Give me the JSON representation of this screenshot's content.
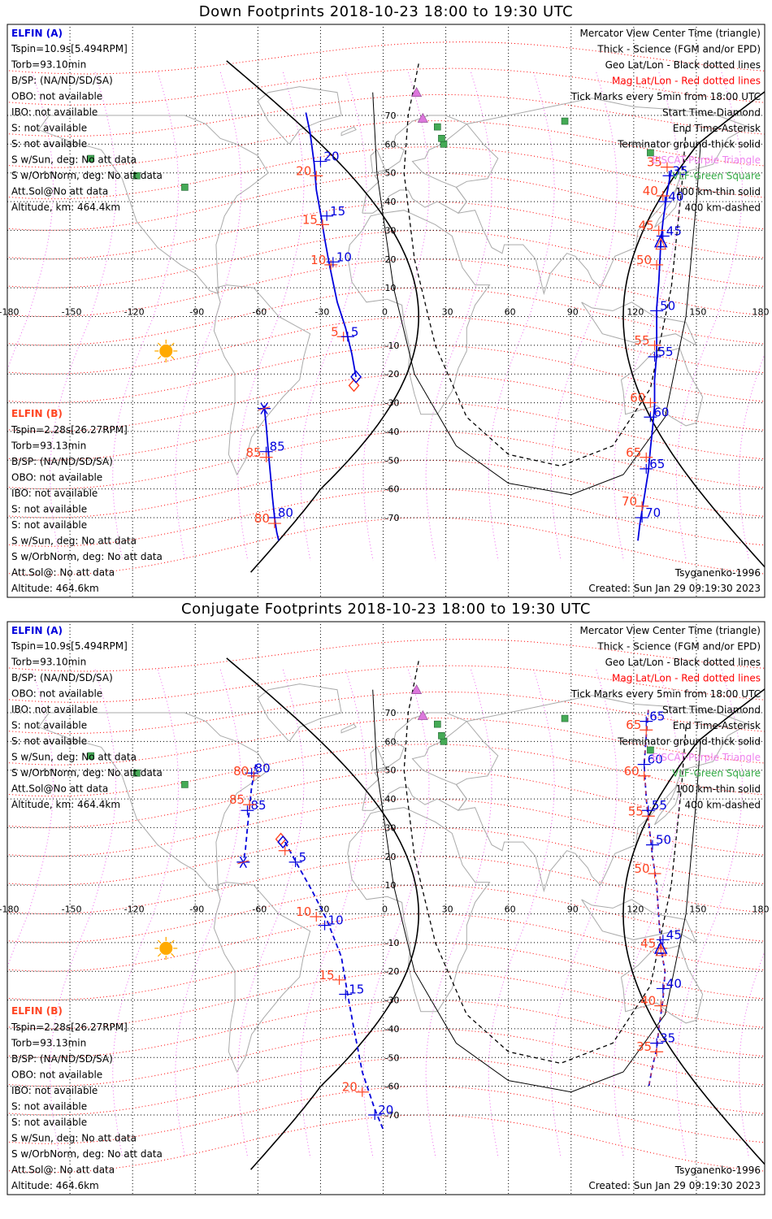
{
  "panels": [
    {
      "title": "Down Footprints 2018-10-23 18:00 to 19:30 UTC",
      "trackA": [
        [
          -37,
          71
        ],
        [
          -35,
          64
        ],
        [
          -33,
          53
        ],
        [
          -32,
          44
        ],
        [
          -30,
          36
        ],
        [
          -28,
          27
        ],
        [
          -26,
          19
        ],
        [
          -24,
          12
        ],
        [
          -22,
          5
        ],
        [
          -18,
          -4
        ],
        [
          -15,
          -13
        ],
        [
          -13,
          -21
        ]
      ],
      "tickA": [
        {
          "lon": -30,
          "lat": 54,
          "v": "20"
        },
        {
          "lon": -27,
          "lat": 35,
          "v": "15"
        },
        {
          "lon": -24,
          "lat": 19,
          "v": "10"
        },
        {
          "lon": -17,
          "lat": -7,
          "v": "5"
        }
      ],
      "tickAr": [
        {
          "lon": -32,
          "lat": 49,
          "v": "20"
        },
        {
          "lon": -29,
          "lat": 32,
          "v": "15"
        },
        {
          "lon": -25,
          "lat": 18,
          "v": "10"
        },
        {
          "lon": -19,
          "lat": -7,
          "v": "5"
        }
      ],
      "trackB": [
        [
          -57,
          -31
        ],
        [
          -56,
          -38
        ],
        [
          -55,
          -47
        ],
        [
          -54,
          -55
        ],
        [
          -53,
          -63
        ],
        [
          -52,
          -70
        ],
        [
          -51,
          -75
        ],
        [
          -50,
          -78
        ]
      ],
      "tickB": [
        {
          "lon": -56,
          "lat": -47,
          "v": "85"
        },
        {
          "lon": -52,
          "lat": -70,
          "v": "80"
        }
      ],
      "tickBr": [
        {
          "lon": -56,
          "lat": -49,
          "v": "85"
        },
        {
          "lon": -52,
          "lat": -72,
          "v": "80"
        }
      ],
      "trackA2": [
        [
          138,
          51
        ],
        [
          136,
          43
        ],
        [
          134,
          33
        ],
        [
          133,
          26
        ],
        [
          132,
          12
        ],
        [
          131,
          3
        ],
        [
          131,
          -5
        ],
        [
          131,
          -13
        ],
        [
          130,
          -22
        ],
        [
          130,
          -31
        ],
        [
          129,
          -39
        ],
        [
          128,
          -46
        ],
        [
          127,
          -54
        ],
        [
          125,
          -63
        ],
        [
          123,
          -72
        ],
        [
          122,
          -78
        ]
      ],
      "tickA2": [
        {
          "lon": 137,
          "lat": 49,
          "v": "35"
        },
        {
          "lon": 135,
          "lat": 40,
          "v": "40"
        },
        {
          "lon": 134,
          "lat": 28,
          "v": "45"
        },
        {
          "lon": 131,
          "lat": 2,
          "v": "50"
        },
        {
          "lon": 130,
          "lat": -14,
          "v": "55"
        },
        {
          "lon": 128,
          "lat": -35,
          "v": "60"
        },
        {
          "lon": 126,
          "lat": -53,
          "v": "65"
        },
        {
          "lon": 124,
          "lat": -70,
          "v": "70"
        }
      ],
      "tickA2r": [
        {
          "lon": 136,
          "lat": 52,
          "v": "35"
        },
        {
          "lon": 134,
          "lat": 42,
          "v": "40"
        },
        {
          "lon": 132,
          "lat": 30,
          "v": "45"
        },
        {
          "lon": 131,
          "lat": 18,
          "v": "50"
        },
        {
          "lon": 130,
          "lat": -10,
          "v": "55"
        },
        {
          "lon": 128,
          "lat": -30,
          "v": "60"
        },
        {
          "lon": 126,
          "lat": -49,
          "v": "65"
        },
        {
          "lon": 124,
          "lat": -66,
          "v": "70"
        }
      ],
      "diamond": {
        "lon": -13,
        "lat": -21
      },
      "diamondR": {
        "lon": -14,
        "lat": -24
      },
      "asterisk": {
        "lon": -57,
        "lat": -32
      },
      "triangle": {
        "lon": 133,
        "lat": 26
      }
    },
    {
      "title": "Conjugate Footprints 2018-10-23 18:00 to 19:30 UTC",
      "trackA": [
        [
          -47,
          25
        ],
        [
          -41,
          17
        ],
        [
          -34,
          8
        ],
        [
          -27,
          -2
        ],
        [
          -20,
          -15
        ],
        [
          -17,
          -28
        ],
        [
          -14,
          -40
        ],
        [
          -10,
          -55
        ],
        [
          -4,
          -68
        ],
        [
          0,
          -75
        ]
      ],
      "tickA": [
        {
          "lon": -42,
          "lat": 18,
          "v": "5"
        },
        {
          "lon": -28,
          "lat": -4,
          "v": "10"
        },
        {
          "lon": -18,
          "lat": -28,
          "v": "15"
        },
        {
          "lon": -4,
          "lat": -70,
          "v": "20"
        }
      ],
      "tickAr": [
        {
          "lon": -47,
          "lat": 22,
          "v": ""
        },
        {
          "lon": -32,
          "lat": -1,
          "v": "10"
        },
        {
          "lon": -21,
          "lat": -23,
          "v": "15"
        },
        {
          "lon": -10,
          "lat": -62,
          "v": "20"
        }
      ],
      "trackB": [
        [
          -61,
          52
        ],
        [
          -63,
          44
        ],
        [
          -64,
          37
        ],
        [
          -65,
          30
        ],
        [
          -66,
          22
        ],
        [
          -67,
          18
        ]
      ],
      "tickB": [
        {
          "lon": -63,
          "lat": 49,
          "v": "80"
        },
        {
          "lon": -65,
          "lat": 36,
          "v": "85"
        }
      ],
      "tickBr": [
        {
          "lon": -62,
          "lat": 48,
          "v": "80"
        },
        {
          "lon": -64,
          "lat": 38,
          "v": "85"
        }
      ],
      "trackA2": [
        [
          127,
          71
        ],
        [
          126,
          62
        ],
        [
          125,
          52
        ],
        [
          126,
          40
        ],
        [
          127,
          33
        ],
        [
          129,
          20
        ],
        [
          131,
          10
        ],
        [
          133,
          -12
        ],
        [
          135,
          -20
        ],
        [
          134,
          -30
        ],
        [
          132,
          -40
        ],
        [
          131,
          -47
        ],
        [
          129,
          -53
        ],
        [
          127,
          -61
        ]
      ],
      "tickA2": [
        {
          "lon": 126,
          "lat": 67,
          "v": "65"
        },
        {
          "lon": 125,
          "lat": 52,
          "v": "60"
        },
        {
          "lon": 127,
          "lat": 36,
          "v": "55"
        },
        {
          "lon": 129,
          "lat": 24,
          "v": "50"
        },
        {
          "lon": 134,
          "lat": -9,
          "v": "45"
        },
        {
          "lon": 134,
          "lat": -26,
          "v": "40"
        },
        {
          "lon": 131,
          "lat": -45,
          "v": "35"
        }
      ],
      "tickA2r": [
        {
          "lon": 126,
          "lat": 64,
          "v": "65"
        },
        {
          "lon": 125,
          "lat": 48,
          "v": "60"
        },
        {
          "lon": 127,
          "lat": 34,
          "v": "55"
        },
        {
          "lon": 130,
          "lat": 14,
          "v": "50"
        },
        {
          "lon": 133,
          "lat": -12,
          "v": "45"
        },
        {
          "lon": 133,
          "lat": -32,
          "v": "40"
        },
        {
          "lon": 131,
          "lat": -48,
          "v": "35"
        }
      ],
      "diamond": {
        "lon": -48,
        "lat": 25
      },
      "diamondR": {
        "lon": -49,
        "lat": 26
      },
      "asterisk": {
        "lon": -67,
        "lat": 18
      },
      "triangle": {
        "lon": 133,
        "lat": -12
      }
    }
  ],
  "left_info": {
    "a_title": "ELFIN (A)",
    "a_lines": [
      "Tspin=10.9s[5.494RPM]",
      "Torb=93.10min",
      "B/SP: (NA/ND/SD/SA)",
      "OBO: not available",
      "IBO: not available",
      "S: not available",
      "S: not available",
      "S w/Sun, deg: No att data",
      "S w/OrbNorm, deg: No att data",
      "Att.Sol@No att data",
      "Altitude, km: 464.4km"
    ],
    "b_title": "ELFIN (B)",
    "b_lines": [
      "Tspin=2.28s[26.27RPM]",
      "Torb=93.13min",
      "B/SP: (NA/ND/SD/SA)",
      "OBO: not available",
      "IBO: not available",
      "S: not available",
      "S: not available",
      "S w/Sun, deg: No att data",
      "S w/OrbNorm, deg: No att data",
      "Att.Sol@: No att data",
      "Altitude: 464.6km"
    ]
  },
  "legend": [
    {
      "text": "Mercator View Center Time (triangle)",
      "color": "#000000"
    },
    {
      "text": "Thick - Science (FGM and/or EPD)",
      "color": "#000000"
    },
    {
      "text": "Geo Lat/Lon - Black dotted lines",
      "color": "#000000"
    },
    {
      "text": "Mag Lat/Lon - Red dotted lines",
      "color": "#ff0000"
    },
    {
      "text": "Tick Marks every 5min from 18:00 UTC",
      "color": "#000000"
    },
    {
      "text": "Start Time-Diamond",
      "color": "#000000"
    },
    {
      "text": "End Time-Asterisk",
      "color": "#000000"
    },
    {
      "text": "Terminator ground-thick solid",
      "color": "#000000"
    },
    {
      "text": "EISCAT-Purple Triangle",
      "color": "#ee82ee"
    },
    {
      "text": "VLF-Green Square",
      "color": "#33aa44"
    },
    {
      "text": "100 km-thin solid",
      "color": "#000000"
    },
    {
      "text": "400 km-dashed",
      "color": "#000000"
    }
  ],
  "model": "Tsyganenko-1996",
  "created": "Created: Sun Jan 29 09:19:30 2023",
  "lon_ticks": [
    "-180",
    "-150",
    "-120",
    "-90",
    "-60",
    "-30",
    "0",
    "30",
    "60",
    "90",
    "120",
    "150",
    "180"
  ],
  "lat_ticks": [
    "70",
    "60",
    "50",
    "40",
    "30",
    "20",
    "10",
    "0",
    "-10",
    "-20",
    "-30",
    "-40",
    "-50",
    "-60",
    "-70"
  ],
  "colors": {
    "trackA": "#0000dd",
    "trackB": "#0000dd",
    "labelB": "#ff4422",
    "mag": "#ff0000",
    "geo_mag_lon": "#ee66ee",
    "sun": "#ffaa00",
    "vlf": "#44aa55",
    "eiscat": "#dd77dd",
    "coast": "#aaaaaa"
  },
  "vlf_sites": [
    [
      -140,
      55
    ],
    [
      -118,
      49
    ],
    [
      -95,
      45
    ],
    [
      87,
      68
    ],
    [
      26,
      66
    ],
    [
      29,
      60
    ],
    [
      28,
      62
    ],
    [
      128,
      57
    ]
  ],
  "eiscat_sites": [
    [
      16,
      78
    ],
    [
      19,
      69
    ]
  ],
  "sun": {
    "lon": -104,
    "lat": -12
  }
}
